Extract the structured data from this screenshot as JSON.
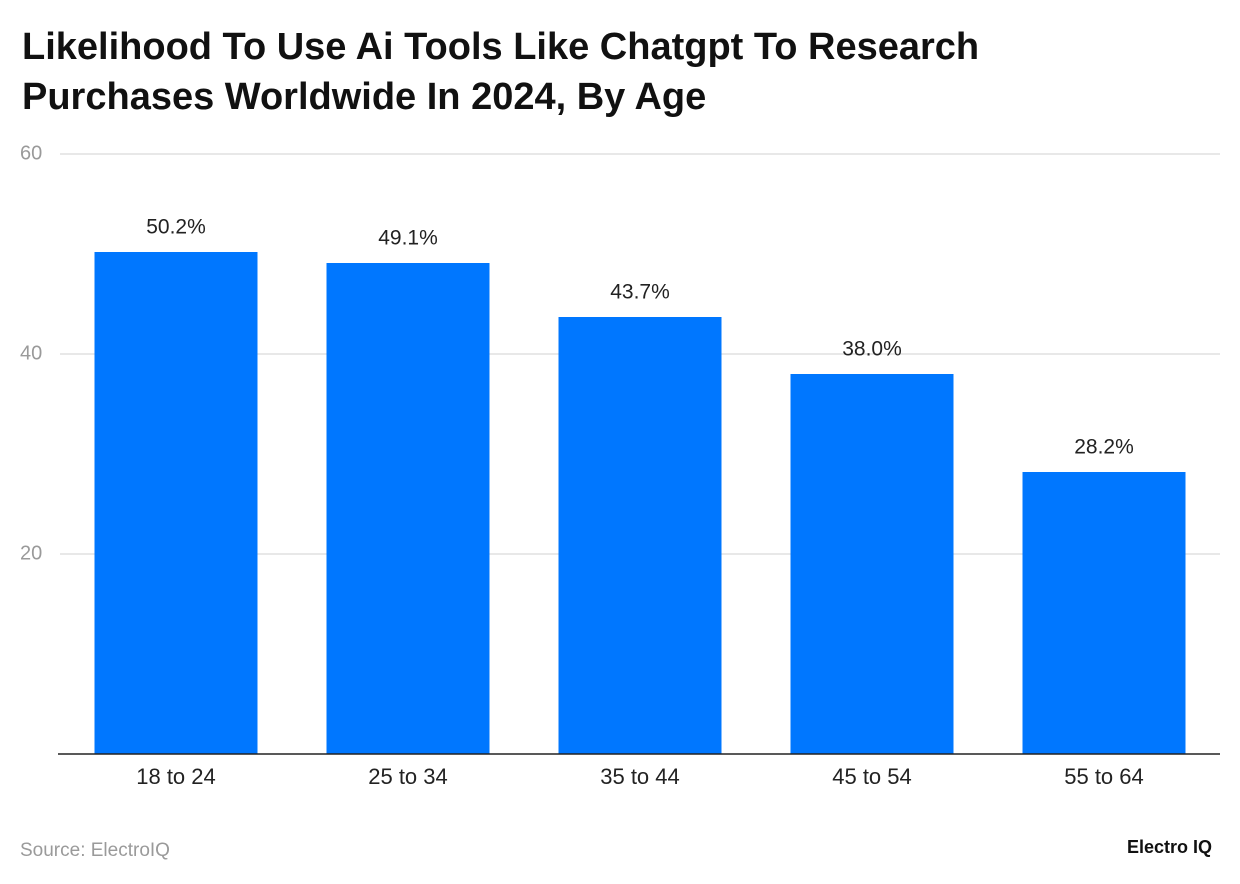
{
  "chart_data": {
    "type": "bar",
    "title": "Likelihood To Use Ai Tools Like Chatgpt To Research Purchases Worldwide In 2024, By Age",
    "categories": [
      "18 to 24",
      "25 to 34",
      "35 to 44",
      "45 to 54",
      "55 to 64"
    ],
    "values": [
      50.2,
      49.1,
      43.7,
      38.0,
      28.2
    ],
    "value_labels": [
      "50.2%",
      "49.1%",
      "43.7%",
      "38.0%",
      "28.2%"
    ],
    "color": "#0077ff",
    "ylim": [
      0,
      60
    ],
    "yticks": [
      20,
      40,
      60
    ],
    "grid": true,
    "source": "Source: ElectroIQ",
    "brand": "Electro IQ"
  }
}
